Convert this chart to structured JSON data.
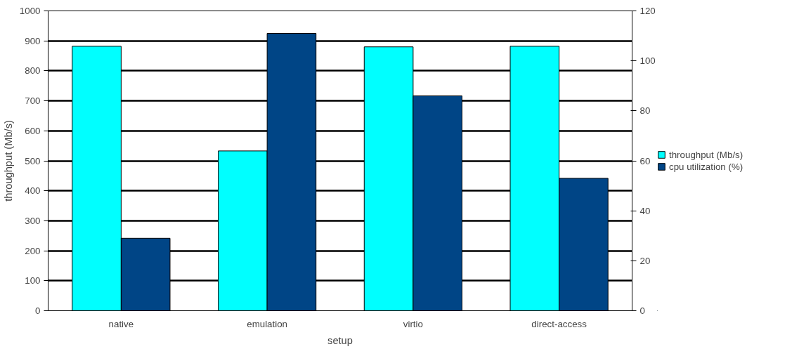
{
  "chart_data": {
    "type": "bar",
    "xlabel": "setup",
    "ylabel": "throughput (Mb/s)",
    "categories": [
      "native",
      "emulation",
      "virtio",
      "direct-access"
    ],
    "series": [
      {
        "name": "throughput (Mb/s)",
        "color": "#00ffff",
        "values": [
          882,
          533,
          880,
          882
        ]
      },
      {
        "name": "cpu utilization (%)",
        "color": "#004586",
        "values": [
          29,
          111,
          86,
          53
        ],
        "axis": "y2"
      }
    ],
    "ylim": [
      0,
      1000
    ],
    "yticks": [
      0,
      100,
      200,
      300,
      400,
      500,
      600,
      700,
      800,
      900,
      1000
    ],
    "y2lim": [
      0,
      120
    ],
    "y2ticks": [
      0,
      20,
      40,
      60,
      80,
      100,
      120
    ],
    "grid": "y",
    "legend": "right"
  }
}
